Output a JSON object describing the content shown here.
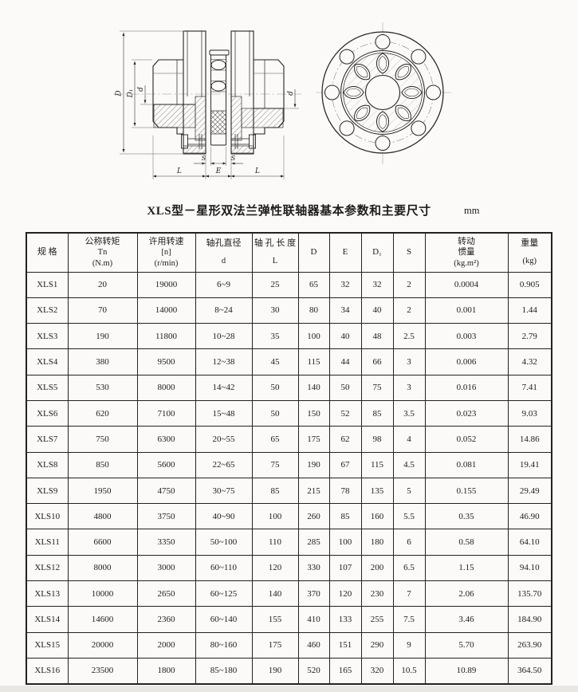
{
  "title": {
    "text": "XLS型－星形双法兰弹性联轴器基本参数和主要尺寸",
    "unit": "mm"
  },
  "drawing": {
    "description": "star-type double-flange elastic coupling, section view and front view",
    "dim_labels": {
      "D": "D",
      "D1": "D₁",
      "d_left": "d",
      "d_right": "d",
      "S_left": "S",
      "S_right": "S",
      "L_left": "L",
      "E": "E",
      "L_right": "L"
    }
  },
  "table": {
    "headers": [
      {
        "lines": [
          "规 格"
        ],
        "gap": false
      },
      {
        "lines": [
          "公称转矩",
          "Tn",
          "(N.m)"
        ],
        "gap": false
      },
      {
        "lines": [
          "许用转速",
          "[n]",
          "(r/min)"
        ],
        "gap": false
      },
      {
        "lines": [
          "轴孔直径",
          "d"
        ],
        "gap": true
      },
      {
        "lines": [
          "轴 孔 长 度",
          "L"
        ],
        "gap": true
      },
      {
        "lines": [
          "D"
        ],
        "gap": false
      },
      {
        "lines": [
          "E"
        ],
        "gap": false
      },
      {
        "lines": [
          "D₁"
        ],
        "gap": false
      },
      {
        "lines": [
          "S"
        ],
        "gap": false
      },
      {
        "lines": [
          "转动",
          "惯量",
          "(kg.m²)"
        ],
        "gap": false
      },
      {
        "lines": [
          "重量",
          "(kg)"
        ],
        "gap": true
      }
    ],
    "rows": [
      [
        "XLS1",
        "20",
        "19000",
        "6~9",
        "25",
        "65",
        "32",
        "32",
        "2",
        "0.0004",
        "0.905"
      ],
      [
        "XLS2",
        "70",
        "14000",
        "8~24",
        "30",
        "80",
        "34",
        "40",
        "2",
        "0.001",
        "1.44"
      ],
      [
        "XLS3",
        "190",
        "11800",
        "10~28",
        "35",
        "100",
        "40",
        "48",
        "2.5",
        "0.003",
        "2.79"
      ],
      [
        "XLS4",
        "380",
        "9500",
        "12~38",
        "45",
        "115",
        "44",
        "66",
        "3",
        "0.006",
        "4.32"
      ],
      [
        "XLS5",
        "530",
        "8000",
        "14~42",
        "50",
        "140",
        "50",
        "75",
        "3",
        "0.016",
        "7.41"
      ],
      [
        "XLS6",
        "620",
        "7100",
        "15~48",
        "50",
        "150",
        "52",
        "85",
        "3.5",
        "0.023",
        "9.03"
      ],
      [
        "XLS7",
        "750",
        "6300",
        "20~55",
        "65",
        "175",
        "62",
        "98",
        "4",
        "0.052",
        "14.86"
      ],
      [
        "XLS8",
        "850",
        "5600",
        "22~65",
        "75",
        "190",
        "67",
        "115",
        "4.5",
        "0.081",
        "19.41"
      ],
      [
        "XLS9",
        "1950",
        "4750",
        "30~75",
        "85",
        "215",
        "78",
        "135",
        "5",
        "0.155",
        "29.49"
      ],
      [
        "XLS10",
        "4800",
        "3750",
        "40~90",
        "100",
        "260",
        "85",
        "160",
        "5.5",
        "0.35",
        "46.90"
      ],
      [
        "XLS11",
        "6600",
        "3350",
        "50~100",
        "110",
        "285",
        "100",
        "180",
        "6",
        "0.58",
        "64.10"
      ],
      [
        "XLS12",
        "8000",
        "3000",
        "60~110",
        "120",
        "330",
        "107",
        "200",
        "6.5",
        "1.15",
        "94.10"
      ],
      [
        "XLS13",
        "10000",
        "2650",
        "60~125",
        "140",
        "370",
        "120",
        "230",
        "7",
        "2.06",
        "135.70"
      ],
      [
        "XLS14",
        "14600",
        "2360",
        "60~140",
        "155",
        "410",
        "133",
        "255",
        "7.5",
        "3.46",
        "184.90"
      ],
      [
        "XLS15",
        "20000",
        "2000",
        "80~160",
        "175",
        "460",
        "151",
        "290",
        "9",
        "5.70",
        "263.90"
      ],
      [
        "XLS16",
        "23500",
        "1800",
        "85~180",
        "190",
        "520",
        "165",
        "320",
        "10.5",
        "10.89",
        "364.50"
      ]
    ]
  }
}
